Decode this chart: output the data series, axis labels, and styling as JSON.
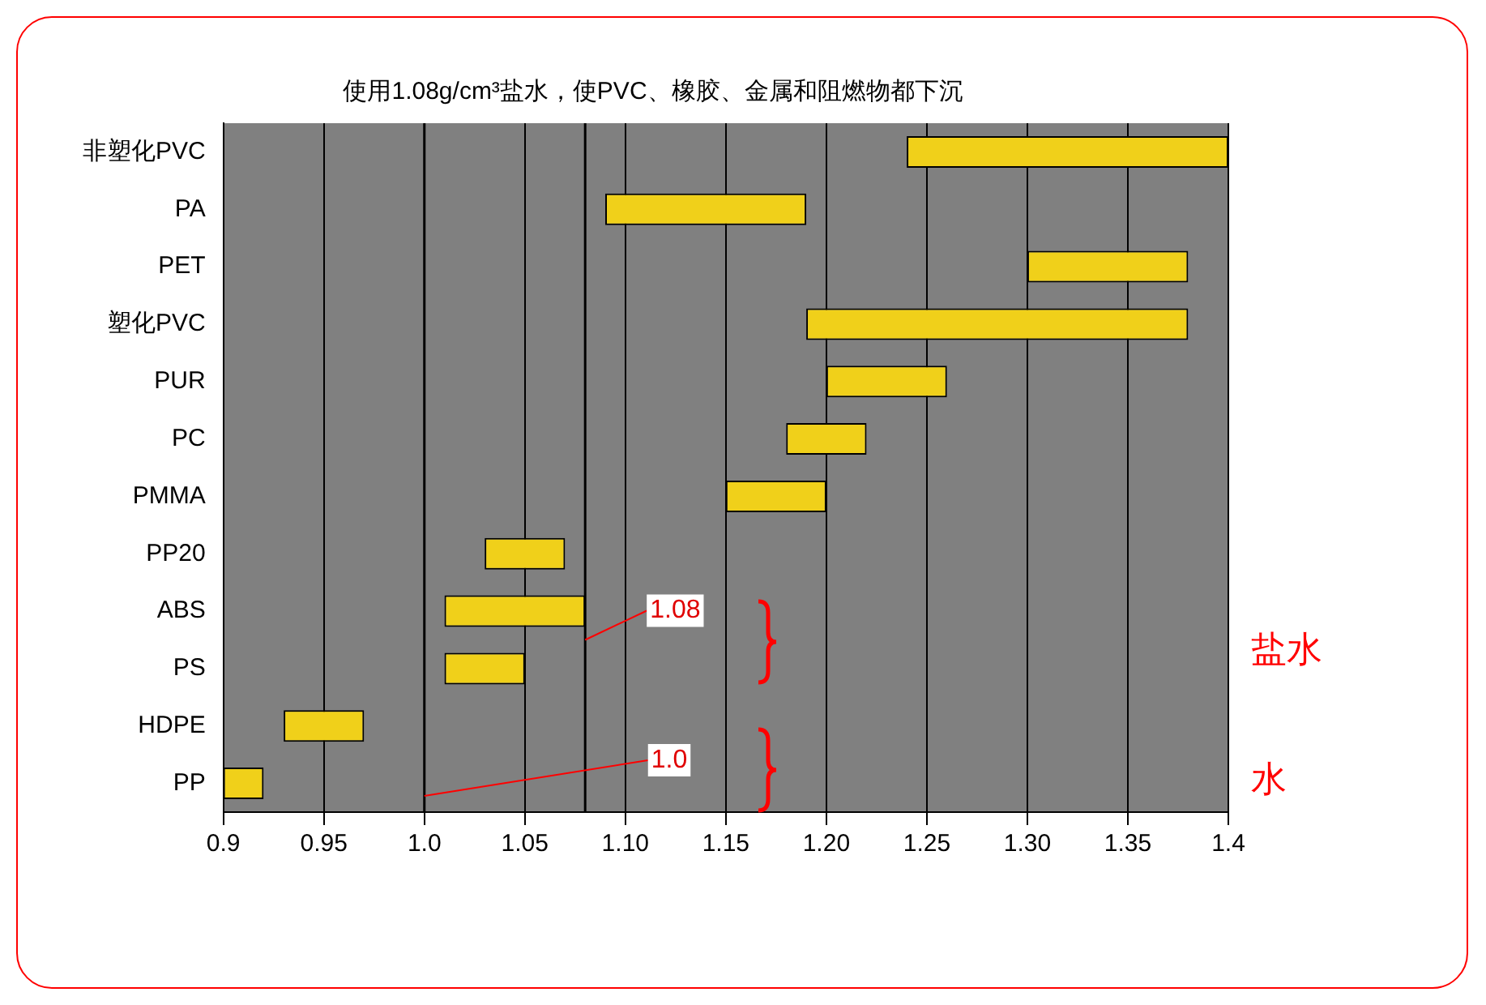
{
  "chart_data": {
    "type": "bar",
    "orientation": "horizontal",
    "title": "使用1.08g/cm³盐水，使PVC、橡胶、金属和阻燃物都下沉",
    "categories": [
      "非塑化PVC",
      "PA",
      "PET",
      "塑化PVC",
      "PUR",
      "PC",
      "PMMA",
      "PP20",
      "ABS",
      "PS",
      "HDPE",
      "PP"
    ],
    "base": [
      1.24,
      1.09,
      1.3,
      1.19,
      1.2,
      1.18,
      1.15,
      1.03,
      1.01,
      1.01,
      0.93,
      0.9
    ],
    "values": [
      0.16,
      0.1,
      0.08,
      0.19,
      0.06,
      0.04,
      0.05,
      0.04,
      0.07,
      0.04,
      0.04,
      0.02
    ],
    "color": "#f0d01a",
    "xlim": [
      0.9,
      1.4
    ],
    "xticks": [
      0.9,
      0.95,
      {
        "value": 1.0,
        "label": "1.0"
      },
      1.05,
      {
        "value": 1.1,
        "label": "1.10"
      },
      1.15,
      {
        "value": 1.2,
        "label": "1.20"
      },
      1.25,
      {
        "value": 1.3,
        "label": "1.30"
      },
      1.35,
      {
        "value": 1.4,
        "label": "1.4"
      }
    ],
    "grid": "x",
    "legend": false,
    "ref_lines": [
      {
        "axis": "x",
        "value": 1.08,
        "label": "1.08",
        "color": "#000000"
      },
      {
        "axis": "x",
        "value": 1.0,
        "label": "1.0",
        "color": "#000000"
      }
    ],
    "annotations": [
      "盐水",
      "水"
    ]
  }
}
